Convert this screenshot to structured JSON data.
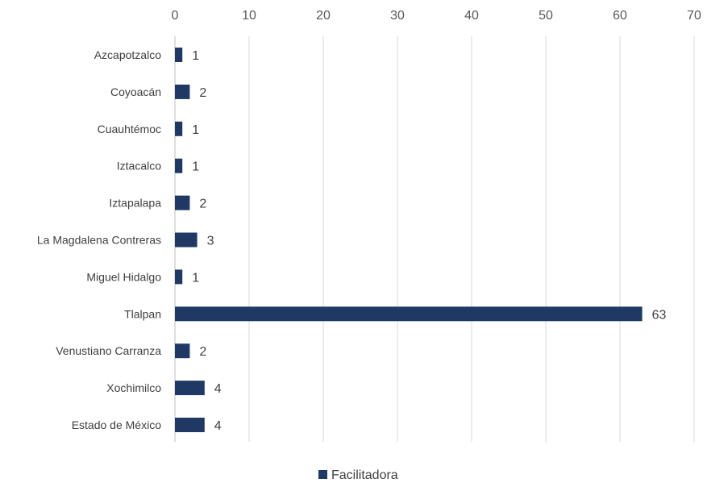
{
  "chart_data": {
    "type": "bar",
    "orientation": "horizontal",
    "categories": [
      "Azcapotzalco",
      "Coyoacán",
      "Cuauhtémoc",
      "Iztacalco",
      "Iztapalapa",
      "La Magdalena Contreras",
      "Miguel Hidalgo",
      "Tlalpan",
      "Venustiano Carranza",
      "Xochimilco",
      "Estado de México"
    ],
    "series": [
      {
        "name": "Facilitadora",
        "values": [
          1,
          2,
          1,
          1,
          2,
          3,
          1,
          63,
          2,
          4,
          4
        ],
        "color": "#1f3864"
      }
    ],
    "xlim": [
      0,
      70
    ],
    "xticks": [
      0,
      10,
      20,
      30,
      40,
      50,
      60,
      70
    ],
    "x_axis_position": "top",
    "grid": true,
    "legend": "bottom"
  }
}
